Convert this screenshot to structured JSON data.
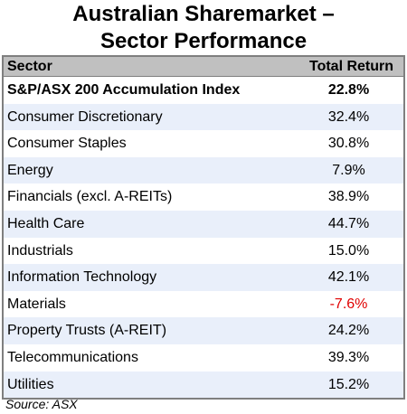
{
  "chart_data": {
    "type": "table",
    "title_lines": [
      "Australian Sharemarket –",
      "Sector Performance"
    ],
    "columns": [
      "Sector",
      "Total Return"
    ],
    "rows": [
      {
        "sector": "S&P/ASX 200 Accumulation Index",
        "total_return": "22.8%"
      },
      {
        "sector": "Consumer Discretionary",
        "total_return": "32.4%"
      },
      {
        "sector": "Consumer Staples",
        "total_return": "30.8%"
      },
      {
        "sector": "Energy",
        "total_return": "7.9%"
      },
      {
        "sector": "Financials (excl. A-REITs)",
        "total_return": "38.9%"
      },
      {
        "sector": "Health Care",
        "total_return": "44.7%"
      },
      {
        "sector": "Industrials",
        "total_return": "15.0%"
      },
      {
        "sector": "Information Technology",
        "total_return": "42.1%"
      },
      {
        "sector": "Materials",
        "total_return": "-7.6%"
      },
      {
        "sector": "Property Trusts (A-REIT)",
        "total_return": "24.2%"
      },
      {
        "sector": "Telecommunications",
        "total_return": "39.3%"
      },
      {
        "sector": "Utilities",
        "total_return": "15.2%"
      }
    ],
    "values": [
      22.8,
      32.4,
      30.8,
      7.9,
      38.9,
      44.7,
      15.0,
      42.1,
      -7.6,
      24.2,
      39.3,
      15.2
    ],
    "source": "Source: ASX"
  },
  "colors": {
    "header_bg": "#c0c0c0",
    "alt_row_bg": "#e9effa",
    "border": "#7f7f7f",
    "negative": "#e00000",
    "text": "#000000"
  }
}
